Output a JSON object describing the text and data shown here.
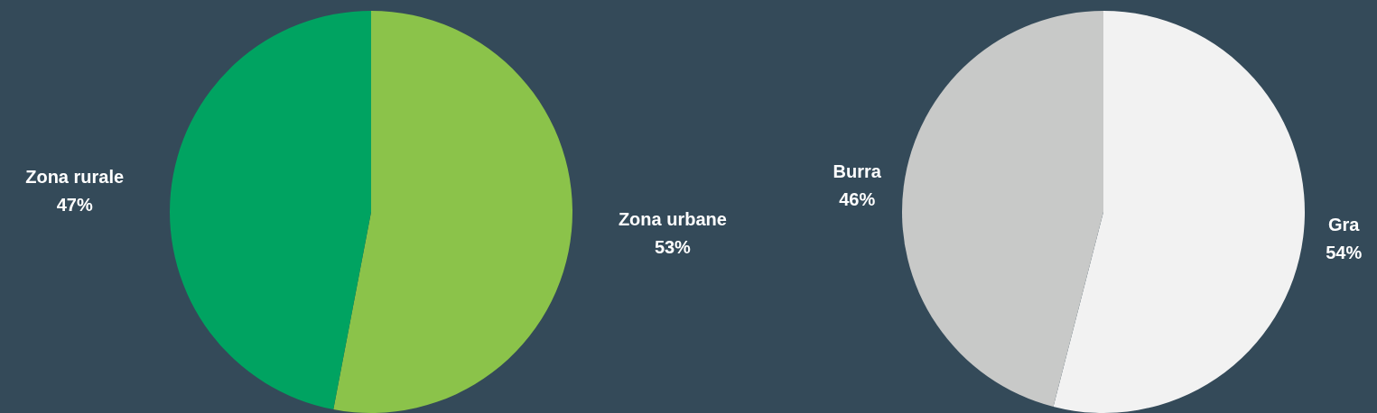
{
  "chart_data": [
    {
      "type": "pie",
      "categories": [
        "Zona urbane",
        "Zona rurale"
      ],
      "values": [
        53,
        47
      ],
      "colors": [
        "#8bc34a",
        "#00a361"
      ],
      "data_labels": true,
      "value_labels": [
        "53%",
        "47%"
      ],
      "legend": false
    },
    {
      "type": "pie",
      "categories": [
        "Gra",
        "Burra"
      ],
      "values": [
        54,
        46
      ],
      "colors": [
        "#f2f2f2",
        "#c8c9c8"
      ],
      "data_labels": true,
      "value_labels": [
        "54%",
        "46%"
      ],
      "legend": false
    }
  ]
}
